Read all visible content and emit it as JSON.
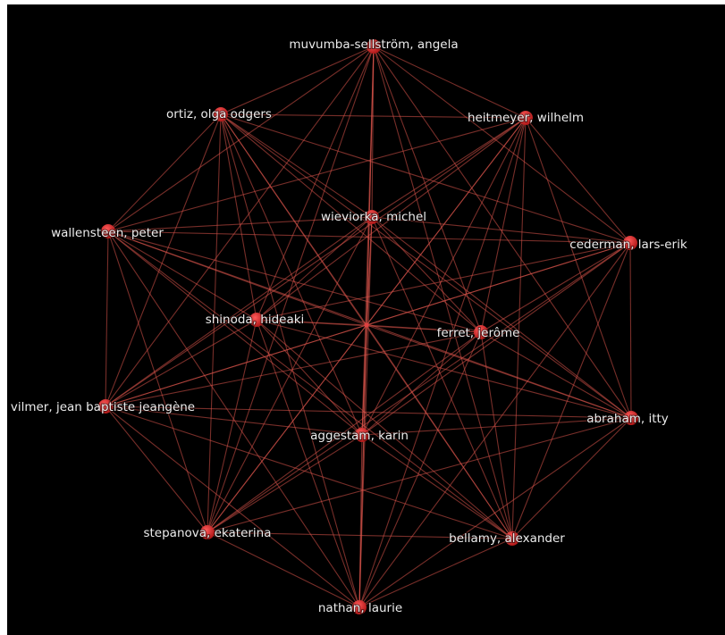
{
  "nodes": [
    {
      "label": "muvumba-sellström, angela"
    },
    {
      "label": "ortiz, olga odgers"
    },
    {
      "label": "heitmeyer, wilhelm"
    },
    {
      "label": "wieviorka, michel"
    },
    {
      "label": "wallensteen, peter"
    },
    {
      "label": "cederman, lars-erik"
    },
    {
      "label": "shinoda, hideaki"
    },
    {
      "label": "ferret, jerôme"
    },
    {
      "label": "vilmer, jean baptiste jeangène"
    },
    {
      "label": "abraham, itty"
    },
    {
      "label": "aggestam, karin"
    },
    {
      "label": "stepanova, ekaterina"
    },
    {
      "label": "bellamy, alexander"
    },
    {
      "label": "nathan, laurie"
    }
  ]
}
